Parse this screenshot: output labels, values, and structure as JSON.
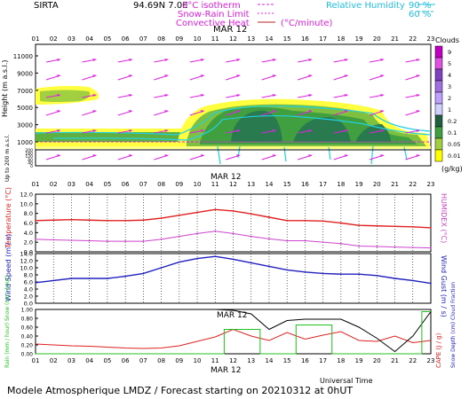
{
  "header": {
    "station": "SIRTA",
    "coords": "94.69N 7.0E",
    "legend_isotherm": "0°C isotherm",
    "legend_snow_rain": "Snow-Rain Limit",
    "legend_convective": "Convective Heat",
    "legend_convective_unit": "(°C/minute)",
    "legend_rh": "Relative Humidity",
    "legend_rh_90": "90 %",
    "legend_rh_60": "60 %"
  },
  "date_label": "MAR 12",
  "hours": [
    "01",
    "02",
    "03",
    "04",
    "05",
    "06",
    "07",
    "08",
    "09",
    "10",
    "11",
    "12",
    "13",
    "14",
    "15",
    "16",
    "17",
    "18",
    "19",
    "20",
    "21",
    "22",
    "23"
  ],
  "clouds": {
    "title": "Clouds",
    "unit": "(g/kg)",
    "scale_labels": [
      "9",
      "5",
      "4",
      "3",
      "2",
      "1",
      "0.2",
      "0.1",
      "0.05",
      "0.01"
    ],
    "scale_colors": [
      "#c000c0",
      "#e050e0",
      "#8040c0",
      "#a070e0",
      "#c0a0ff",
      "#d0d0ff",
      "#206040",
      "#40a040",
      "#a0d040",
      "#ffff00"
    ]
  },
  "axes": {
    "height_label": "Height (m a.s.l.)",
    "height_ticks": [
      "11000",
      "9000",
      "7000",
      "5000",
      "3000",
      "1000"
    ],
    "lowlevel_label": "Up to 200 m a.s.l.",
    "lowlevel_ticks": [
      "200",
      "180",
      "160",
      "140",
      "120",
      "100",
      "80",
      "60",
      "40",
      "20",
      "0"
    ],
    "temp_label": "Temperature (°C)",
    "temp_ticks": [
      "12.0",
      "10.0",
      "8.0",
      "6.0",
      "4.0",
      "2.0",
      "0.0"
    ],
    "humidex_label": "HUMIDEX (°C)",
    "wind_label": "Wind Speed (m / s)",
    "wind_ticks": [
      "14.0",
      "12.0",
      "10.0",
      "8.0",
      "6.0",
      "4.0",
      "2.0",
      "0.0"
    ],
    "gust_label": "Wind Gust (m / s)",
    "rain_label": "Rain (mm / hour) Snow (cm / hour)",
    "rain_ticks": [
      "1.00",
      "0.80",
      "0.60",
      "0.40",
      "0.20",
      "0.00"
    ],
    "cape_label": "CAPE (J / g)",
    "snowdepth_label": "Snow Depth (cm) Cloud Fraction",
    "universal_time": "Universal Time"
  },
  "footer": "Modele Atmospherique LMDZ / Forecast starting on 20210312 at 0hUT",
  "chart_data": [
    {
      "type": "line",
      "title": "Temperature / Humidex",
      "x": [
        1,
        2,
        3,
        4,
        5,
        6,
        7,
        8,
        9,
        10,
        11,
        12,
        13,
        14,
        15,
        16,
        17,
        18,
        19,
        20,
        21,
        22,
        23
      ],
      "ylim": [
        0,
        12
      ],
      "series": [
        {
          "name": "Temperature",
          "color": "#e02020",
          "values": [
            6.5,
            6.6,
            6.7,
            6.6,
            6.5,
            6.5,
            6.6,
            7.0,
            7.6,
            8.2,
            8.8,
            8.5,
            7.9,
            7.2,
            6.5,
            6.5,
            6.4,
            6.0,
            5.5,
            5.4,
            5.3,
            5.2,
            5.0
          ]
        },
        {
          "name": "Humidex",
          "color": "#cc44cc",
          "values": [
            2.6,
            2.5,
            2.4,
            2.3,
            2.2,
            2.2,
            2.2,
            2.6,
            3.2,
            3.8,
            4.3,
            3.8,
            3.2,
            2.7,
            2.3,
            2.3,
            2.0,
            1.7,
            1.2,
            1.1,
            1.0,
            0.9,
            0.8
          ]
        }
      ]
    },
    {
      "type": "line",
      "title": "Wind Speed",
      "x": [
        1,
        2,
        3,
        4,
        5,
        6,
        7,
        8,
        9,
        10,
        11,
        12,
        13,
        14,
        15,
        16,
        17,
        18,
        19,
        20,
        21,
        22,
        23
      ],
      "ylim": [
        0,
        14
      ],
      "series": [
        {
          "name": "Wind Speed",
          "color": "#2020c0",
          "values": [
            5.8,
            6.4,
            7.0,
            7.0,
            7.0,
            7.6,
            8.4,
            10.0,
            11.6,
            12.6,
            13.2,
            12.4,
            11.4,
            10.4,
            9.4,
            8.8,
            8.4,
            8.2,
            8.2,
            7.8,
            7.0,
            6.4,
            5.6
          ]
        }
      ]
    },
    {
      "type": "line",
      "title": "Precipitation / CAPE / Cloud Fraction",
      "x": [
        1,
        2,
        3,
        4,
        5,
        6,
        7,
        8,
        9,
        10,
        11,
        12,
        13,
        14,
        15,
        16,
        17,
        18,
        19,
        20,
        21,
        22,
        23
      ],
      "ylim": [
        0,
        1
      ],
      "series": [
        {
          "name": "CAPE",
          "color": "#e02020",
          "values": [
            0.22,
            0.2,
            0.18,
            0.17,
            0.15,
            0.13,
            0.12,
            0.13,
            0.18,
            0.28,
            0.38,
            0.55,
            0.4,
            0.3,
            0.48,
            0.33,
            0.42,
            0.5,
            0.3,
            0.28,
            0.4,
            0.25,
            0.3
          ]
        },
        {
          "name": "Cloud Fraction",
          "color": "#000000",
          "values": [
            1.0,
            1.0,
            1.0,
            1.0,
            1.0,
            1.0,
            1.0,
            1.0,
            1.0,
            1.0,
            1.0,
            0.98,
            0.9,
            0.55,
            0.75,
            0.78,
            0.78,
            0.78,
            0.6,
            0.35,
            0.05,
            0.4,
            0.95
          ]
        },
        {
          "name": "Rain",
          "color": "#20c020",
          "values": [
            0,
            0,
            0,
            0,
            0,
            0,
            0,
            0,
            0,
            0,
            0,
            0.55,
            0.55,
            0,
            0,
            0.65,
            0.65,
            0,
            0,
            0,
            0,
            0,
            0.95
          ]
        }
      ]
    }
  ]
}
